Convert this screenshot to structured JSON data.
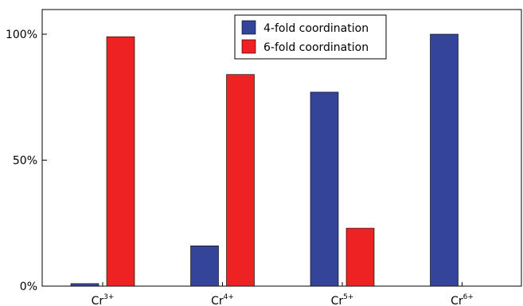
{
  "chart_data": {
    "type": "bar",
    "categories": [
      {
        "base": "Cr",
        "sup": "3+"
      },
      {
        "base": "Cr",
        "sup": "4+"
      },
      {
        "base": "Cr",
        "sup": "5+"
      },
      {
        "base": "Cr",
        "sup": "6+"
      }
    ],
    "series": [
      {
        "name": "4-fold coordination",
        "color": "#334499",
        "values": [
          1,
          16,
          77,
          100
        ]
      },
      {
        "name": "6-fold coordination",
        "color": "#ee2222",
        "values": [
          99,
          84,
          23,
          0
        ]
      }
    ],
    "title": "",
    "xlabel": "",
    "ylabel": "",
    "ylim": [
      0,
      100
    ],
    "yticks": [
      {
        "value": 0,
        "label": "0%"
      },
      {
        "value": 50,
        "label": "50%"
      },
      {
        "value": 100,
        "label": "100%"
      }
    ],
    "grid": false,
    "legend_position": "top-center"
  }
}
